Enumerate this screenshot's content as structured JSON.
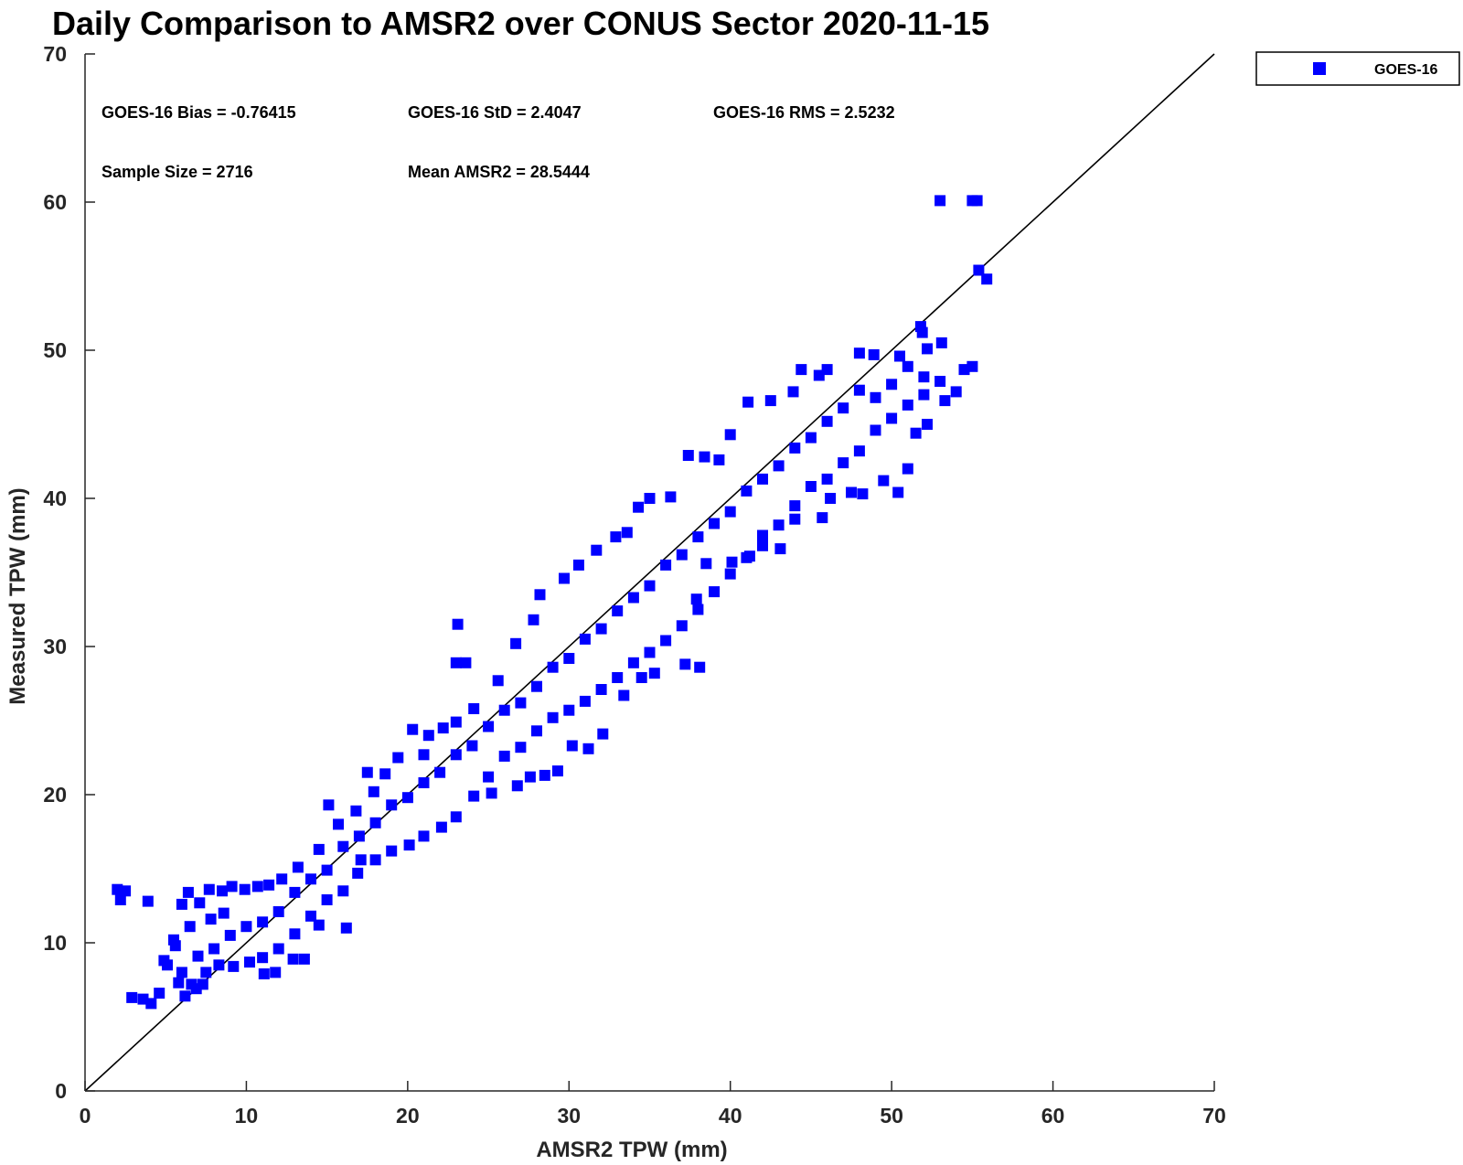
{
  "chart_data": {
    "type": "scatter",
    "title": "Daily Comparison to AMSR2 over CONUS Sector 2020-11-15",
    "xlabel": "AMSR2 TPW (mm)",
    "ylabel": "Measured TPW (mm)",
    "xlim": [
      0,
      70
    ],
    "ylim": [
      0,
      70
    ],
    "xticks": [
      "0",
      "10",
      "20",
      "30",
      "40",
      "50",
      "60",
      "70"
    ],
    "yticks": [
      "0",
      "10",
      "20",
      "30",
      "40",
      "50",
      "60",
      "70"
    ],
    "grid": false,
    "legend_position": "outside-top-right",
    "reference_line": {
      "x": [
        0,
        70
      ],
      "y": [
        0,
        70
      ],
      "color": "#000000"
    },
    "stats": {
      "bias": "GOES-16 Bias = -0.76415",
      "std": "GOES-16 StD = 2.4047",
      "rms": "GOES-16 RMS = 2.5232",
      "sample_size": "Sample Size = 2716",
      "mean": "Mean AMSR2 = 28.5444"
    },
    "series": [
      {
        "name": "GOES-16",
        "color": "#0000ff",
        "marker": "square",
        "points": [
          [
            2.0,
            13.6
          ],
          [
            2.5,
            13.5
          ],
          [
            2.2,
            12.9
          ],
          [
            3.9,
            12.8
          ],
          [
            2.9,
            6.3
          ],
          [
            3.6,
            6.2
          ],
          [
            4.1,
            5.9
          ],
          [
            4.6,
            6.6
          ],
          [
            5.1,
            8.5
          ],
          [
            5.6,
            9.8
          ],
          [
            6.0,
            12.6
          ],
          [
            6.4,
            13.4
          ],
          [
            7.1,
            12.7
          ],
          [
            7.7,
            13.6
          ],
          [
            8.5,
            13.5
          ],
          [
            9.1,
            13.8
          ],
          [
            6.2,
            6.4
          ],
          [
            6.9,
            6.9
          ],
          [
            7.3,
            7.2
          ],
          [
            11.1,
            7.9
          ],
          [
            11.8,
            8.0
          ],
          [
            12.9,
            8.9
          ],
          [
            13.6,
            8.9
          ],
          [
            14.5,
            11.2
          ],
          [
            15.1,
            19.3
          ],
          [
            16.2,
            11.0
          ],
          [
            17.1,
            15.6
          ],
          [
            17.5,
            21.5
          ],
          [
            20.3,
            24.4
          ],
          [
            21.3,
            24.0
          ],
          [
            23.0,
            28.9
          ],
          [
            23.6,
            28.9
          ],
          [
            23.1,
            31.5
          ],
          [
            25.2,
            20.1
          ],
          [
            26.8,
            20.6
          ],
          [
            27.6,
            21.2
          ],
          [
            28.5,
            21.3
          ],
          [
            29.3,
            21.6
          ],
          [
            30.2,
            23.3
          ],
          [
            31.2,
            23.1
          ],
          [
            32.1,
            24.1
          ],
          [
            33.4,
            26.7
          ],
          [
            34.5,
            27.9
          ],
          [
            35.3,
            28.2
          ],
          [
            37.2,
            28.8
          ],
          [
            38.1,
            28.6
          ],
          [
            37.9,
            33.2
          ],
          [
            38.5,
            35.6
          ],
          [
            40.1,
            35.7
          ],
          [
            41.2,
            36.1
          ],
          [
            42.0,
            36.8
          ],
          [
            43.1,
            36.6
          ],
          [
            44.0,
            38.6
          ],
          [
            45.7,
            38.7
          ],
          [
            46.2,
            40.0
          ],
          [
            47.5,
            40.4
          ],
          [
            48.2,
            40.3
          ],
          [
            49.5,
            41.2
          ],
          [
            50.4,
            40.4
          ],
          [
            51.0,
            42.0
          ],
          [
            51.5,
            44.4
          ],
          [
            52.2,
            45.0
          ],
          [
            53.3,
            46.6
          ],
          [
            54.0,
            47.2
          ],
          [
            54.5,
            48.7
          ],
          [
            55.0,
            48.9
          ],
          [
            52.2,
            50.1
          ],
          [
            53.1,
            50.5
          ],
          [
            51.9,
            51.2
          ],
          [
            51.8,
            51.6
          ],
          [
            53.0,
            60.1
          ],
          [
            55.0,
            60.1
          ],
          [
            55.3,
            60.1
          ],
          [
            55.4,
            55.4
          ],
          [
            55.9,
            54.8
          ],
          [
            48.0,
            49.8
          ],
          [
            48.9,
            49.7
          ],
          [
            46.0,
            48.7
          ],
          [
            45.5,
            48.3
          ],
          [
            44.4,
            48.7
          ],
          [
            43.9,
            47.2
          ],
          [
            42.5,
            46.6
          ],
          [
            41.1,
            46.5
          ],
          [
            40.0,
            44.3
          ],
          [
            39.3,
            42.6
          ],
          [
            38.4,
            42.8
          ],
          [
            37.4,
            42.9
          ],
          [
            36.3,
            40.1
          ],
          [
            35.0,
            40.0
          ],
          [
            34.3,
            39.4
          ],
          [
            33.6,
            37.7
          ],
          [
            32.9,
            37.4
          ],
          [
            31.7,
            36.5
          ],
          [
            30.6,
            35.5
          ],
          [
            29.7,
            34.6
          ],
          [
            28.2,
            33.5
          ],
          [
            27.8,
            31.8
          ],
          [
            26.7,
            30.2
          ],
          [
            25.6,
            27.7
          ],
          [
            24.1,
            25.8
          ],
          [
            23.0,
            24.9
          ],
          [
            22.2,
            24.5
          ],
          [
            21.0,
            22.7
          ],
          [
            19.4,
            22.5
          ],
          [
            18.6,
            21.4
          ],
          [
            17.9,
            20.2
          ],
          [
            16.8,
            18.9
          ],
          [
            15.7,
            18.0
          ],
          [
            14.5,
            16.3
          ],
          [
            13.2,
            15.1
          ],
          [
            12.2,
            14.3
          ],
          [
            11.4,
            13.9
          ],
          [
            10.7,
            13.8
          ],
          [
            9.9,
            13.6
          ],
          [
            8.6,
            12.0
          ],
          [
            7.8,
            11.6
          ],
          [
            6.5,
            11.1
          ],
          [
            5.5,
            10.2
          ],
          [
            4.9,
            8.8
          ],
          [
            5.8,
            7.3
          ],
          [
            6.6,
            7.2
          ],
          [
            7.5,
            8.0
          ],
          [
            8.3,
            8.5
          ],
          [
            9.2,
            8.4
          ],
          [
            10.2,
            8.7
          ],
          [
            11.0,
            9.0
          ],
          [
            12.0,
            9.6
          ],
          [
            13.0,
            10.6
          ],
          [
            14.0,
            11.8
          ],
          [
            15.0,
            12.9
          ],
          [
            16.0,
            13.5
          ],
          [
            16.9,
            14.7
          ],
          [
            18.0,
            15.6
          ],
          [
            19.0,
            16.2
          ],
          [
            20.1,
            16.6
          ],
          [
            21.0,
            17.2
          ],
          [
            22.1,
            17.8
          ],
          [
            23.0,
            18.5
          ],
          [
            24.1,
            19.9
          ],
          [
            25.0,
            21.2
          ],
          [
            26.0,
            22.6
          ],
          [
            27.0,
            23.2
          ],
          [
            28.0,
            24.3
          ],
          [
            29.0,
            25.2
          ],
          [
            30.0,
            25.7
          ],
          [
            31.0,
            26.3
          ],
          [
            32.0,
            27.1
          ],
          [
            33.0,
            27.9
          ],
          [
            34.0,
            28.9
          ],
          [
            35.0,
            29.6
          ],
          [
            36.0,
            30.4
          ],
          [
            37.0,
            31.4
          ],
          [
            38.0,
            32.5
          ],
          [
            39.0,
            33.7
          ],
          [
            40.0,
            34.9
          ],
          [
            41.0,
            36.0
          ],
          [
            42.0,
            37.5
          ],
          [
            43.0,
            38.2
          ],
          [
            44.0,
            39.5
          ],
          [
            45.0,
            40.8
          ],
          [
            46.0,
            41.3
          ],
          [
            47.0,
            42.4
          ],
          [
            48.0,
            43.2
          ],
          [
            49.0,
            44.6
          ],
          [
            50.0,
            45.4
          ],
          [
            51.0,
            46.3
          ],
          [
            52.0,
            47.0
          ],
          [
            53.0,
            47.9
          ],
          [
            6.0,
            8.0
          ],
          [
            7.0,
            9.1
          ],
          [
            8.0,
            9.6
          ],
          [
            9.0,
            10.5
          ],
          [
            10.0,
            11.1
          ],
          [
            11.0,
            11.4
          ],
          [
            12.0,
            12.1
          ],
          [
            13.0,
            13.4
          ],
          [
            14.0,
            14.3
          ],
          [
            15.0,
            14.9
          ],
          [
            16.0,
            16.5
          ],
          [
            17.0,
            17.2
          ],
          [
            18.0,
            18.1
          ],
          [
            19.0,
            19.3
          ],
          [
            20.0,
            19.8
          ],
          [
            21.0,
            20.8
          ],
          [
            22.0,
            21.5
          ],
          [
            23.0,
            22.7
          ],
          [
            24.0,
            23.3
          ],
          [
            25.0,
            24.6
          ],
          [
            26.0,
            25.7
          ],
          [
            27.0,
            26.2
          ],
          [
            28.0,
            27.3
          ],
          [
            29.0,
            28.6
          ],
          [
            30.0,
            29.2
          ],
          [
            31.0,
            30.5
          ],
          [
            32.0,
            31.2
          ],
          [
            33.0,
            32.4
          ],
          [
            34.0,
            33.3
          ],
          [
            35.0,
            34.1
          ],
          [
            36.0,
            35.5
          ],
          [
            37.0,
            36.2
          ],
          [
            38.0,
            37.4
          ],
          [
            39.0,
            38.3
          ],
          [
            40.0,
            39.1
          ],
          [
            41.0,
            40.5
          ],
          [
            42.0,
            41.3
          ],
          [
            43.0,
            42.2
          ],
          [
            44.0,
            43.4
          ],
          [
            45.0,
            44.1
          ],
          [
            46.0,
            45.2
          ],
          [
            47.0,
            46.1
          ],
          [
            48.0,
            47.3
          ],
          [
            49.0,
            46.8
          ],
          [
            50.0,
            47.7
          ],
          [
            51.0,
            48.9
          ],
          [
            52.0,
            48.2
          ],
          [
            50.5,
            49.6
          ]
        ]
      }
    ]
  }
}
